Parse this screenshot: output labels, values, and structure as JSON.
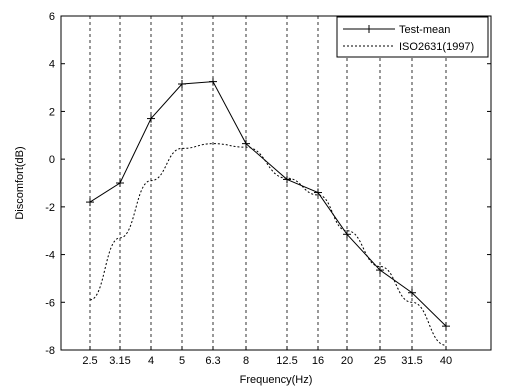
{
  "chart_data": {
    "type": "line",
    "title": "",
    "xlabel": "Frequency(Hz)",
    "ylabel": "Discomfort(dB)",
    "categories": [
      "2.5",
      "3.15",
      "4",
      "5",
      "6.3",
      "8",
      "12.5",
      "16",
      "20",
      "25",
      "31.5",
      "40"
    ],
    "ylim": [
      -8,
      6
    ],
    "yticks": [
      "6",
      "4",
      "2",
      "0",
      "-2",
      "-4",
      "-6",
      "-8"
    ],
    "grid": "vertical dashed at each category",
    "legend_position": "top-right",
    "series": [
      {
        "name": "Test-mean",
        "style": "solid-with-plus-markers",
        "color": "#000000",
        "values": [
          -1.8,
          -1.0,
          1.7,
          3.15,
          3.25,
          0.65,
          -0.85,
          -1.4,
          -3.15,
          -4.65,
          -5.6,
          -7.0
        ]
      },
      {
        "name": "ISO2631(1997)",
        "style": "dotted",
        "color": "#000000",
        "x_values": [
          "2.5",
          "3.15",
          "4",
          "5",
          "6.3",
          "8",
          "12.5",
          "16",
          "20",
          "25",
          "31.5",
          "40"
        ],
        "values": [
          -5.9,
          -3.3,
          -0.9,
          0.45,
          0.65,
          0.5,
          -0.8,
          -1.5,
          -3.0,
          -4.5,
          -6.0,
          -7.8
        ]
      }
    ]
  }
}
